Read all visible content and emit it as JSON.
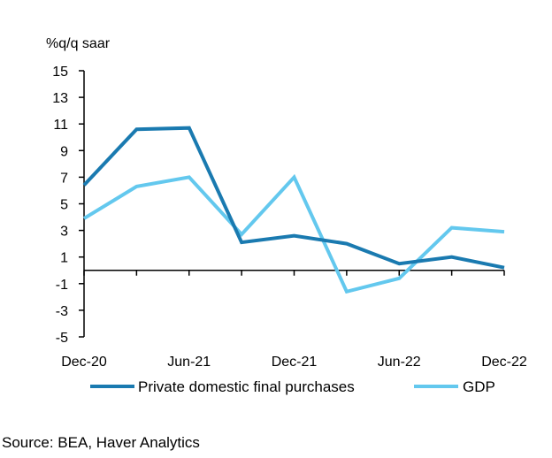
{
  "chart_data": {
    "type": "line",
    "unit_label": "%q/q saar",
    "x": [
      "Dec-20",
      "Mar-21",
      "Jun-21",
      "Sep-21",
      "Dec-21",
      "Mar-22",
      "Jun-22",
      "Sep-22",
      "Dec-22"
    ],
    "x_tick_labels": [
      "Dec-20",
      "Jun-21",
      "Dec-21",
      "Jun-22",
      "Dec-22"
    ],
    "y_ticks": [
      15,
      13,
      11,
      9,
      7,
      5,
      3,
      1,
      -1,
      -3,
      -5
    ],
    "ylim": [
      -5,
      15
    ],
    "legend_position": "bottom",
    "grid": false,
    "series": [
      {
        "name": "Private domestic final purchases",
        "color": "#1a7ab0",
        "values": [
          6.4,
          10.6,
          10.7,
          2.1,
          2.6,
          2.0,
          0.5,
          1.0,
          0.2
        ]
      },
      {
        "name": "GDP",
        "color": "#63c8ee",
        "values": [
          3.9,
          6.3,
          7.0,
          2.7,
          7.0,
          -1.6,
          -0.6,
          3.2,
          2.9
        ]
      }
    ]
  },
  "source": "Source: BEA, Haver Analytics"
}
